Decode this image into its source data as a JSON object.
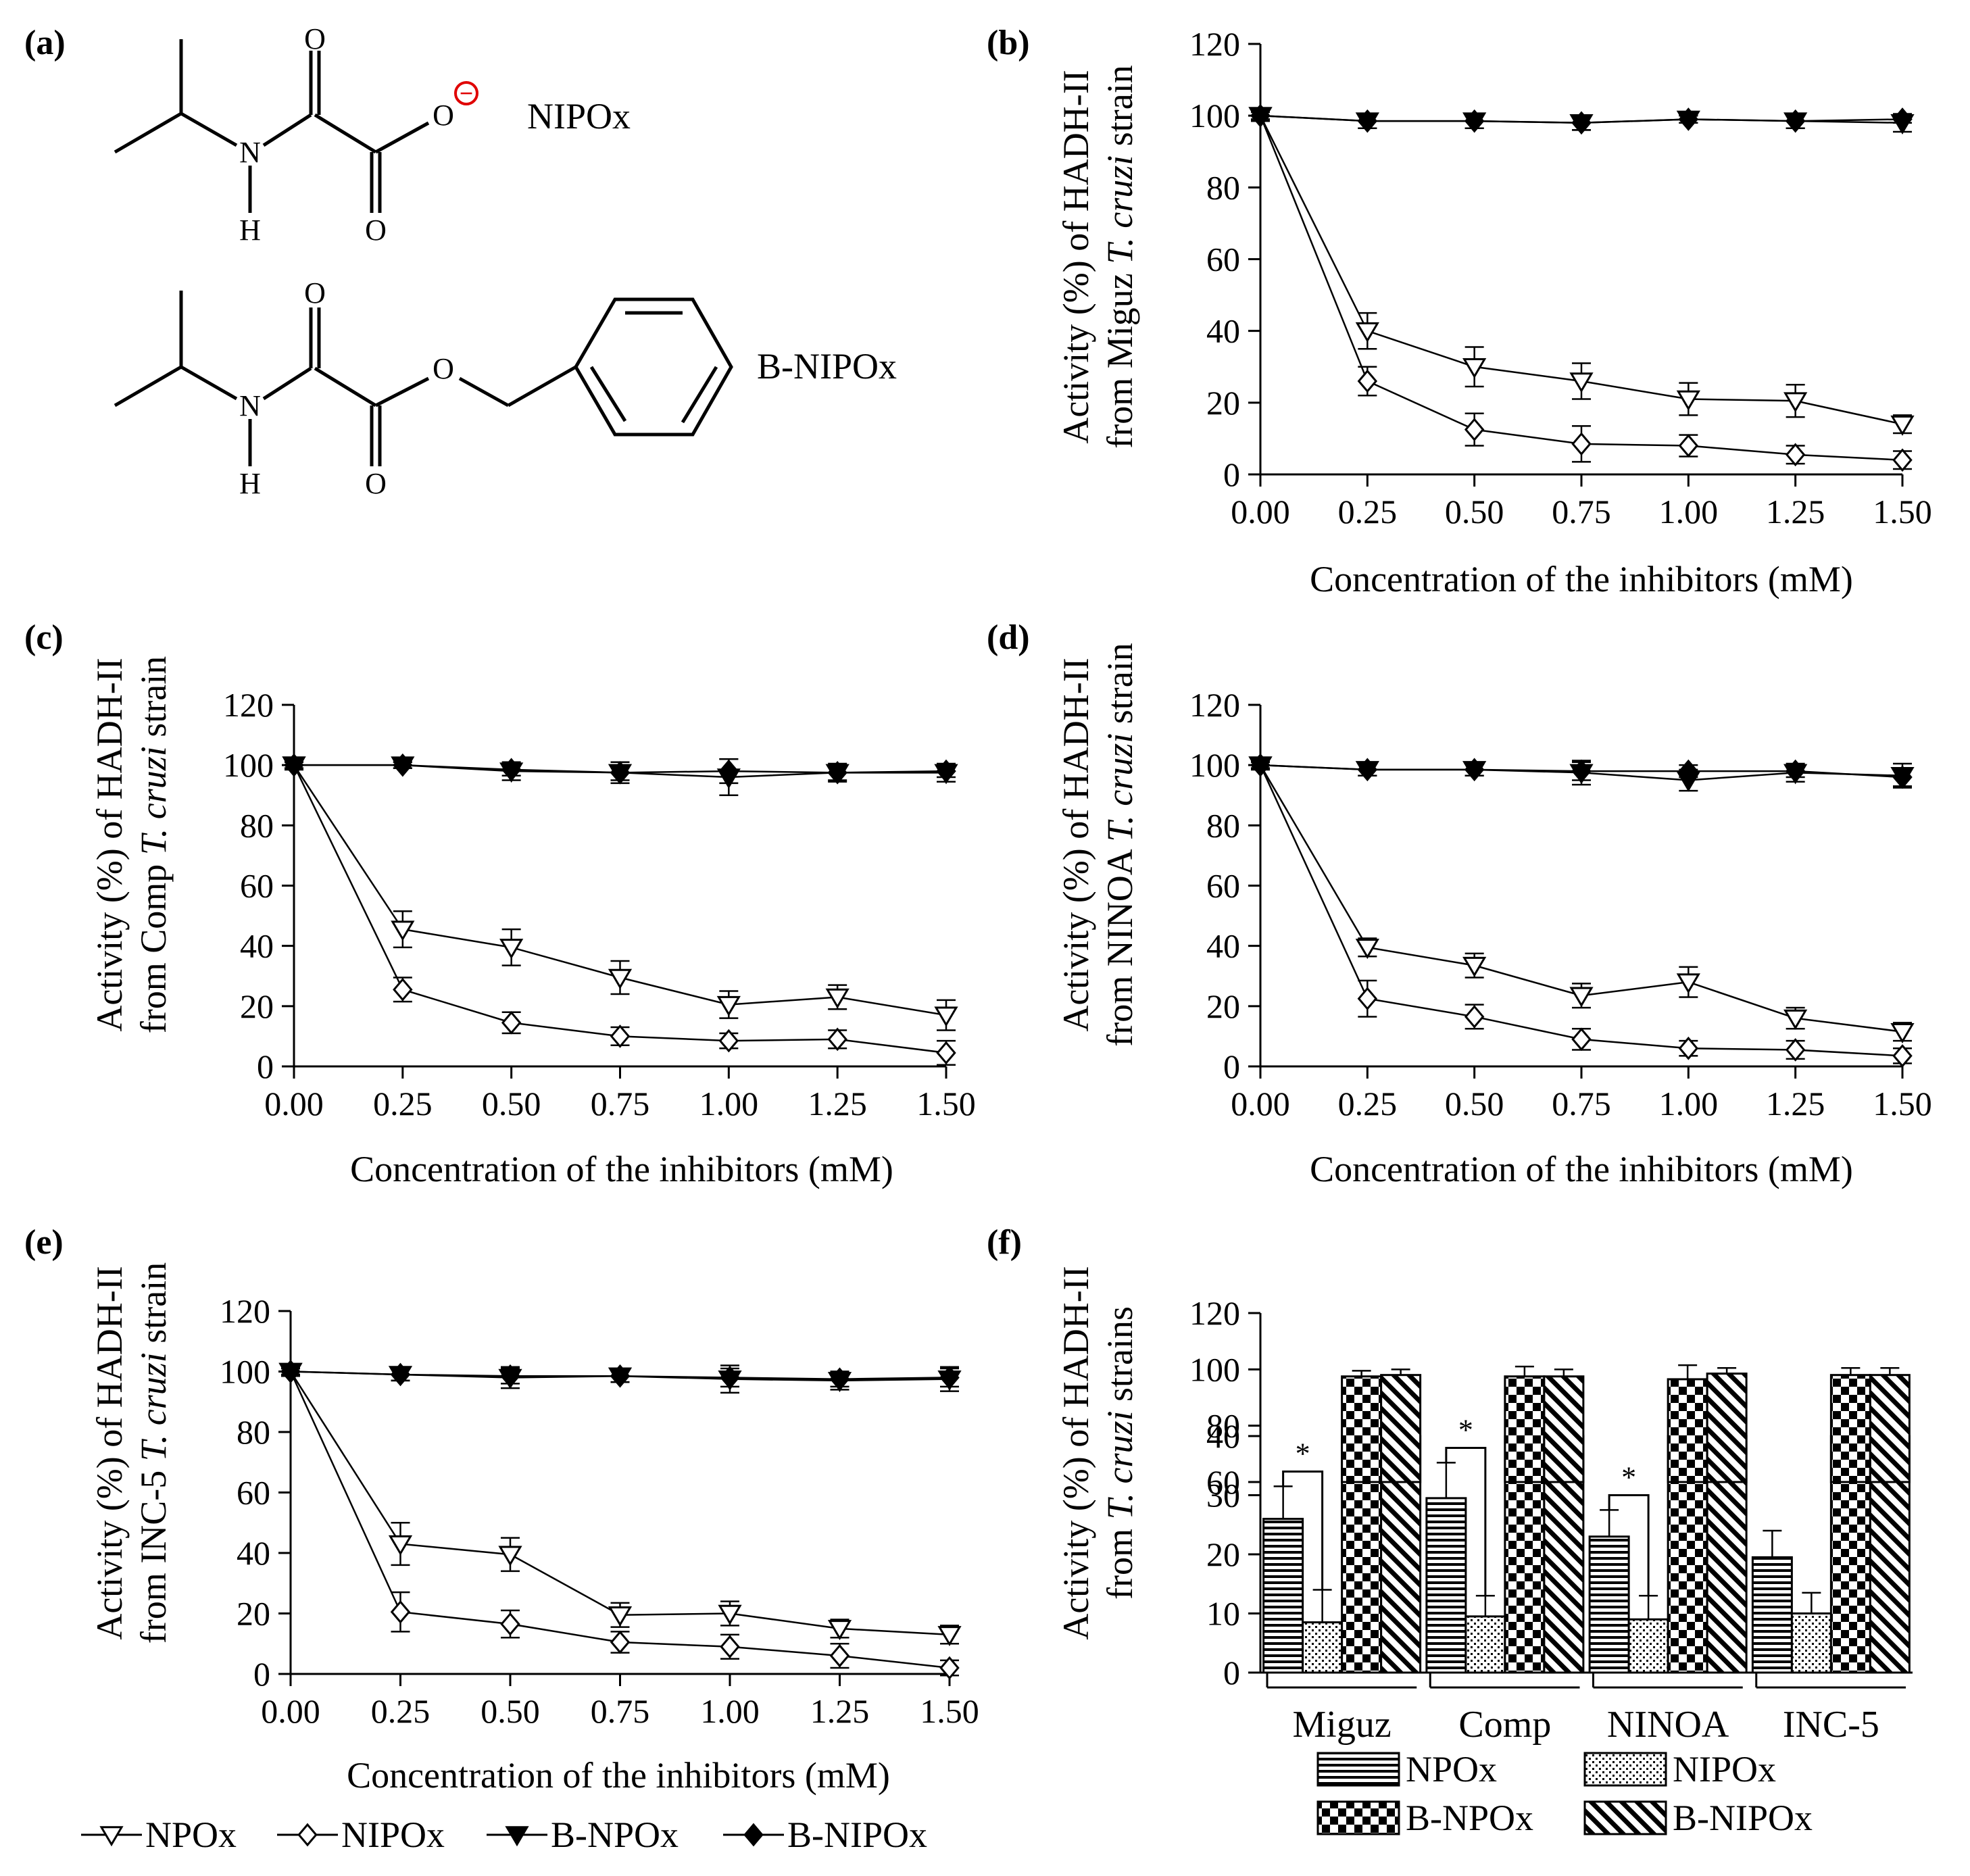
{
  "panel_labels": {
    "a": "(a)",
    "b": "(b)",
    "c": "(c)",
    "d": "(d)",
    "e": "(e)",
    "f": "(f)"
  },
  "molecules": {
    "nipox_name": "NIPOx",
    "bnipox_name": "B-NIPOx",
    "atom_o": "O",
    "atom_n": "N",
    "atom_h": "H",
    "charge_symbol": "−"
  },
  "legends": {
    "line": [
      "NPOx",
      "NIPOx",
      "B-NPOx",
      "B-NIPOx"
    ],
    "bar": [
      "NPOx",
      "NIPOx",
      "B-NPOx",
      "B-NIPOx"
    ]
  },
  "chart_data": [
    {
      "id": "b",
      "type": "line",
      "title": "",
      "ylabel_parts": [
        "Activity (%) of HADH-II",
        "from Miguz ",
        "T. cruzi",
        " strain"
      ],
      "xlabel": "Concentration of the inhibitors (mM)",
      "x": [
        0,
        0.25,
        0.5,
        0.75,
        1.0,
        1.25,
        1.5
      ],
      "x_tick_labels": [
        "0.00",
        "0.25",
        "0.50",
        "0.75",
        "1.00",
        "1.25",
        "1.50"
      ],
      "y_ticks": [
        0,
        20,
        40,
        60,
        80,
        100,
        120
      ],
      "ylim": [
        0,
        120
      ],
      "series": [
        {
          "name": "NPOx",
          "values": [
            100,
            40,
            30,
            26,
            21,
            20.5,
            14
          ],
          "errors": [
            1.5,
            5,
            5.5,
            5,
            4.5,
            4.5,
            2.5
          ]
        },
        {
          "name": "NIPOx",
          "values": [
            100,
            26,
            12.5,
            8.5,
            8,
            5.5,
            4
          ],
          "errors": [
            1.5,
            4,
            4.5,
            5,
            3,
            2.5,
            2.5
          ]
        },
        {
          "name": "B-NPOx",
          "values": [
            100,
            98.5,
            98.5,
            98,
            99,
            98.5,
            98
          ],
          "errors": [
            1,
            2,
            2,
            2,
            1,
            2,
            2.5
          ]
        },
        {
          "name": "B-NIPOx",
          "values": [
            100,
            98.5,
            98.5,
            98,
            99,
            98.5,
            99
          ],
          "errors": [
            1,
            2,
            2,
            2,
            1,
            2,
            1
          ]
        }
      ]
    },
    {
      "id": "c",
      "type": "line",
      "title": "",
      "ylabel_parts": [
        "Activity (%) of HADH-II",
        "from Comp ",
        "T. cruzi",
        " strain"
      ],
      "xlabel": "Concentration of the inhibitors (mM)",
      "x": [
        0,
        0.25,
        0.5,
        0.75,
        1.0,
        1.25,
        1.5
      ],
      "x_tick_labels": [
        "0.00",
        "0.25",
        "0.50",
        "0.75",
        "1.00",
        "1.25",
        "1.50"
      ],
      "y_ticks": [
        0,
        20,
        40,
        60,
        80,
        100,
        120
      ],
      "ylim": [
        0,
        120
      ],
      "series": [
        {
          "name": "NPOx",
          "values": [
            100,
            45.5,
            39.5,
            29.5,
            20.5,
            23,
            17
          ],
          "errors": [
            1.5,
            6,
            6,
            5.5,
            4.5,
            4,
            5
          ]
        },
        {
          "name": "NIPOx",
          "values": [
            100,
            25.5,
            14.5,
            10,
            8.5,
            9,
            4.5
          ],
          "errors": [
            1.5,
            4,
            3.5,
            3,
            2.5,
            3,
            4
          ]
        },
        {
          "name": "B-NPOx",
          "values": [
            100,
            100,
            98,
            97.5,
            96,
            97.5,
            97.5
          ],
          "errors": [
            1,
            1,
            3,
            3.5,
            6,
            3,
            3
          ]
        },
        {
          "name": "B-NIPOx",
          "values": [
            100,
            100,
            98.5,
            97.5,
            98,
            97.5,
            98
          ],
          "errors": [
            1,
            1,
            2,
            2.5,
            4,
            2.5,
            2
          ]
        }
      ]
    },
    {
      "id": "d",
      "type": "line",
      "title": "",
      "ylabel_parts": [
        "Activity (%) of HADH-II",
        "from NINOA ",
        "T. cruzi",
        " strain"
      ],
      "xlabel": "Concentration of the inhibitors (mM)",
      "x": [
        0,
        0.25,
        0.5,
        0.75,
        1.0,
        1.25,
        1.5
      ],
      "x_tick_labels": [
        "0.00",
        "0.25",
        "0.50",
        "0.75",
        "1.00",
        "1.25",
        "1.50"
      ],
      "y_ticks": [
        0,
        20,
        40,
        60,
        80,
        100,
        120
      ],
      "ylim": [
        0,
        120
      ],
      "series": [
        {
          "name": "NPOx",
          "values": [
            100,
            39.5,
            33.5,
            23.5,
            28,
            16,
            11.5
          ],
          "errors": [
            1.5,
            3,
            4,
            4,
            5,
            3.5,
            3
          ]
        },
        {
          "name": "NIPOx",
          "values": [
            100,
            22.5,
            16.5,
            9,
            6,
            5.5,
            3.5
          ],
          "errors": [
            1.5,
            6,
            4,
            3.5,
            2.5,
            3,
            2.5
          ]
        },
        {
          "name": "B-NPOx",
          "values": [
            100,
            98.5,
            98.5,
            97.5,
            95,
            97.5,
            96.5
          ],
          "errors": [
            1,
            2,
            2,
            4,
            3.5,
            3,
            4
          ]
        },
        {
          "name": "B-NIPOx",
          "values": [
            100,
            98.5,
            98.5,
            98,
            98,
            98,
            96
          ],
          "errors": [
            1,
            2,
            2,
            3,
            2,
            2,
            3
          ]
        }
      ]
    },
    {
      "id": "e",
      "type": "line",
      "title": "",
      "ylabel_parts": [
        "Activity (%) of HADH-II",
        "from INC-5 ",
        "T. cruzi",
        " strain"
      ],
      "xlabel": "Concentration of the inhibitors (mM)",
      "x": [
        0,
        0.25,
        0.5,
        0.75,
        1.0,
        1.25,
        1.5
      ],
      "x_tick_labels": [
        "0.00",
        "0.25",
        "0.50",
        "0.75",
        "1.00",
        "1.25",
        "1.50"
      ],
      "y_ticks": [
        0,
        20,
        40,
        60,
        80,
        100,
        120
      ],
      "ylim": [
        0,
        120
      ],
      "series": [
        {
          "name": "NPOx",
          "values": [
            100,
            43,
            39.5,
            19.5,
            20,
            15,
            13
          ],
          "errors": [
            1.5,
            7,
            5.5,
            4,
            4,
            3,
            3
          ]
        },
        {
          "name": "NIPOx",
          "values": [
            100,
            20.5,
            16.5,
            10.5,
            9,
            6,
            2
          ],
          "errors": [
            1.5,
            6.5,
            4.5,
            3.5,
            4,
            4,
            2.5
          ]
        },
        {
          "name": "B-NPOx",
          "values": [
            100,
            99,
            98,
            98.5,
            97.5,
            97,
            97.5
          ],
          "errors": [
            1,
            2,
            3.5,
            2,
            4.5,
            3,
            4
          ]
        },
        {
          "name": "B-NIPOx",
          "values": [
            100,
            99,
            98.5,
            98.5,
            98,
            97.5,
            98
          ],
          "errors": [
            1,
            2,
            2.5,
            2,
            3,
            2.5,
            3
          ]
        }
      ]
    },
    {
      "id": "f",
      "type": "bar",
      "title": "",
      "ylabel_parts": [
        "Activity (%) of HADH-II",
        "from ",
        "T. cruzi",
        " strains"
      ],
      "categories": [
        "Miguz",
        "Comp",
        "NINOA",
        "INC-5"
      ],
      "y_ticks_lower": [
        0,
        10,
        20,
        30,
        40
      ],
      "y_ticks_upper": [
        60,
        80,
        100,
        120
      ],
      "ylim_lower": [
        0,
        40
      ],
      "ylim_upper": [
        60,
        120
      ],
      "significance_label": "*",
      "series": [
        {
          "name": "NPOx",
          "values": [
            26,
            29.5,
            23,
            19.5
          ],
          "errors": [
            5.5,
            6,
            4.5,
            4.5
          ]
        },
        {
          "name": "NIPOx",
          "values": [
            8.5,
            9.5,
            9,
            10
          ],
          "errors": [
            5.5,
            3.5,
            4,
            3.5
          ]
        },
        {
          "name": "B-NPOx",
          "values": [
            97.5,
            97.5,
            96.5,
            98
          ],
          "errors": [
            2,
            3.5,
            5,
            2.5
          ]
        },
        {
          "name": "B-NIPOx",
          "values": [
            98,
            97.5,
            98.5,
            98
          ],
          "errors": [
            2,
            2.5,
            2,
            2.5
          ]
        }
      ],
      "significance_pairs": [
        [
          "NPOx",
          "NIPOx",
          "Miguz"
        ],
        [
          "NPOx",
          "NIPOx",
          "Comp"
        ],
        [
          "NPOx",
          "NIPOx",
          "NINOA"
        ]
      ]
    }
  ]
}
